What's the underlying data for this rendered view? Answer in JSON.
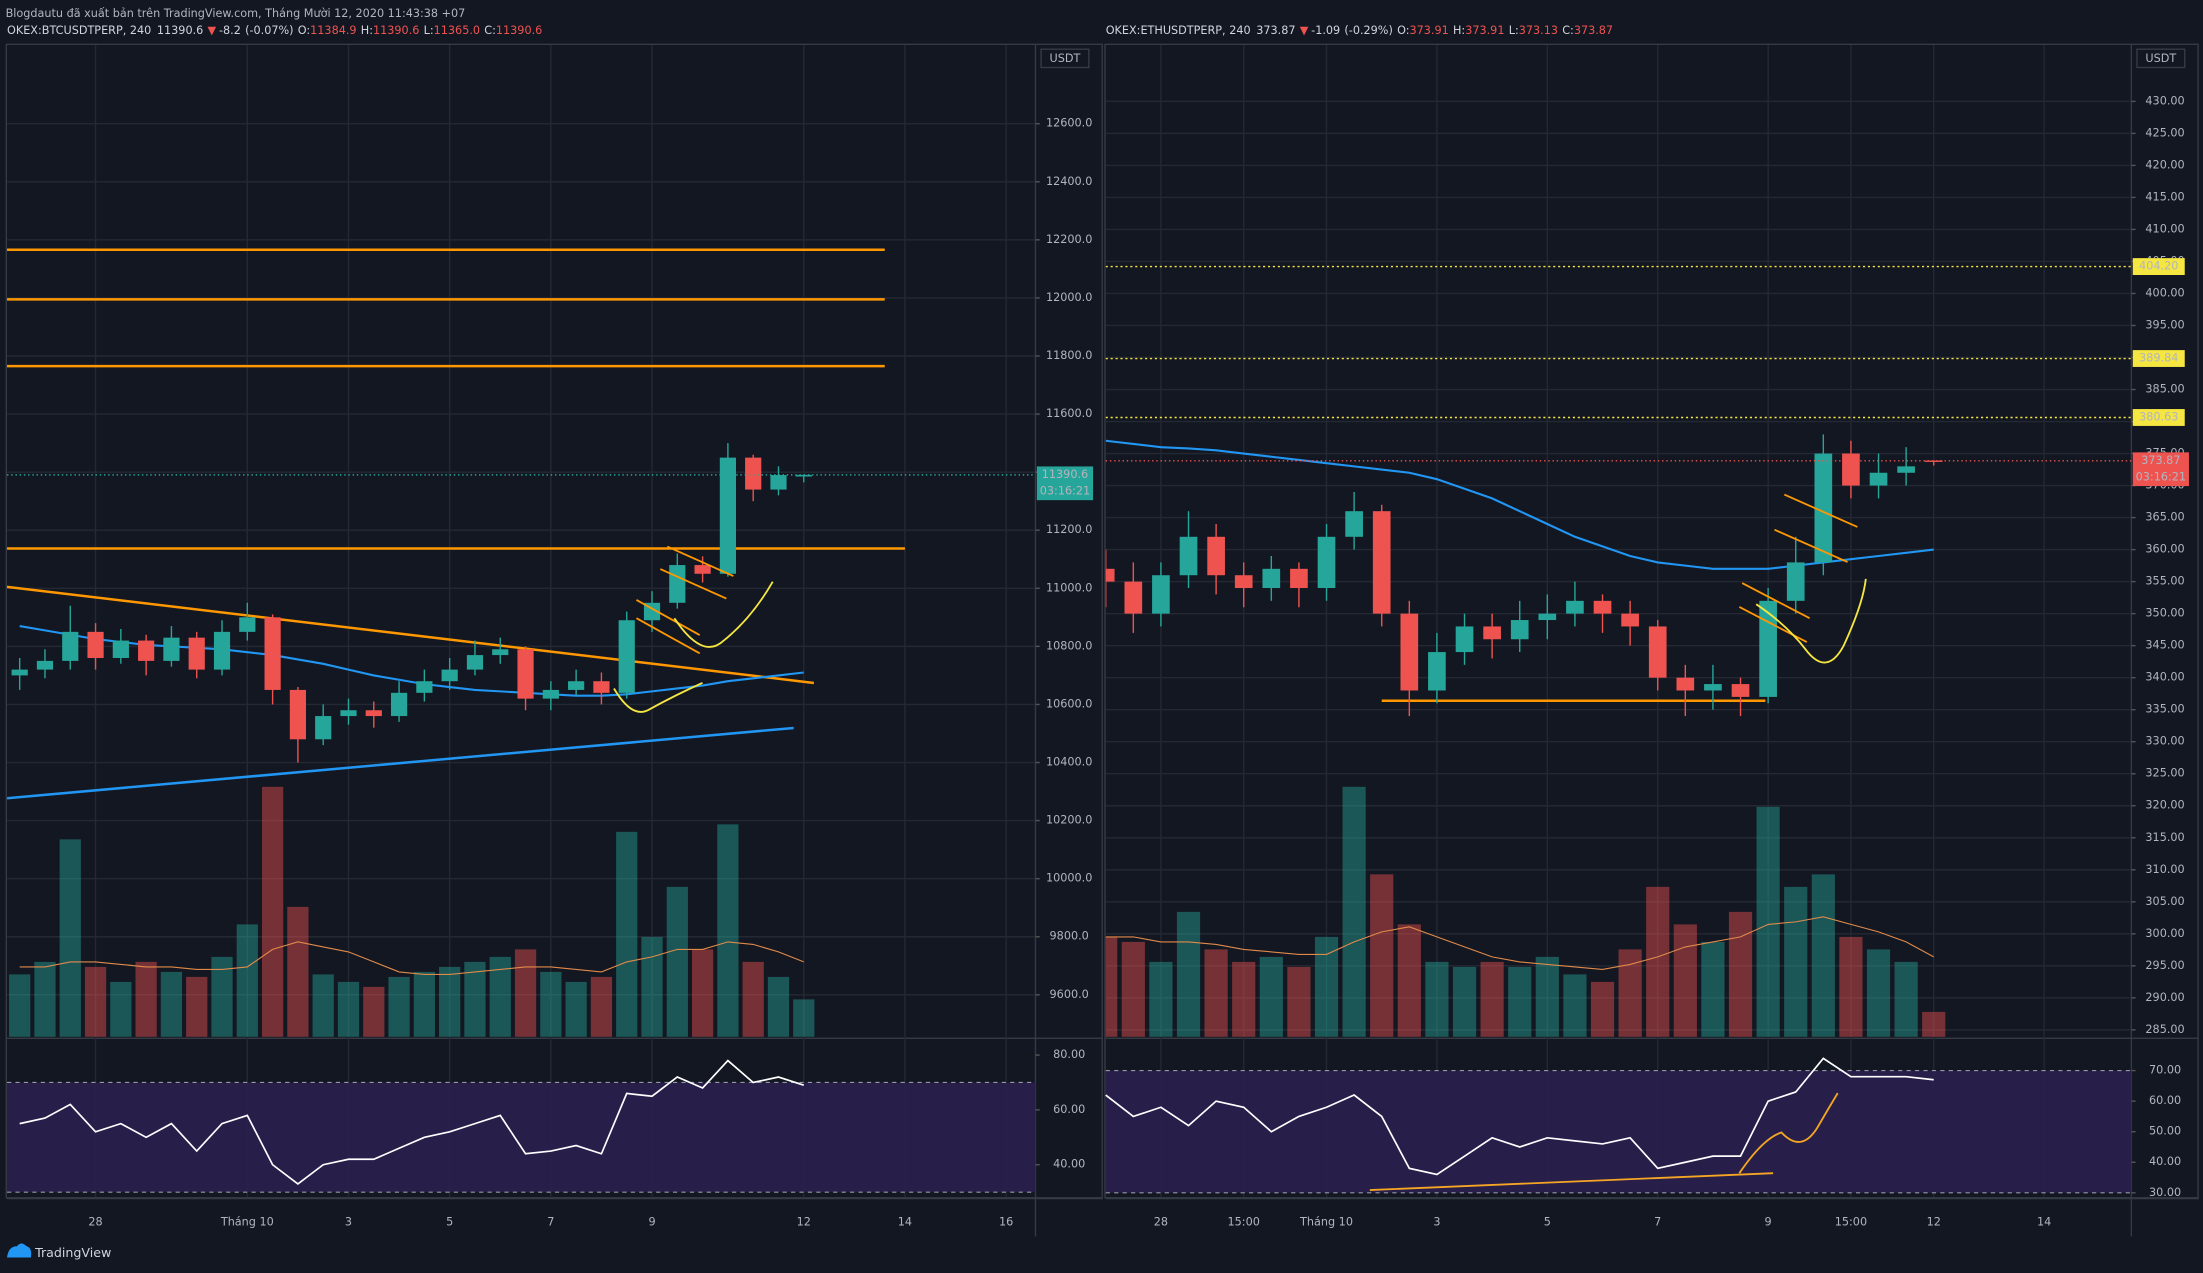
{
  "header": {
    "title": "Blogdautu đã xuất bản trên TradingView.com, Tháng Mười 12, 2020 11:43:38 +07"
  },
  "brand": "TradingView",
  "chart_data": [
    {
      "type": "candlestick",
      "symbol": "OKEX:BTCUSDTPERP, 240",
      "last": 11390.6,
      "change_arrow": "▼",
      "change": -8.2,
      "change_label": "(-0.07%)",
      "quote": [
        {
          "label": "O:",
          "value": 11384.9
        },
        {
          "label": "H:",
          "value": 11390.6
        },
        {
          "label": "L:",
          "value": {
            "value": 11365,
            "label": "11365.0"
          }
        },
        {
          "label": "C:",
          "value": 11390.6
        }
      ],
      "currency": "USDT",
      "countdown": "03:16:21",
      "up_color": "#26a69a",
      "down_color": "#ef5350",
      "tag_color": "#26a69a",
      "xlim": [
        -1.75,
        18.58
      ],
      "xticks": [
        {
          "value": 0,
          "label": "28"
        },
        {
          "value": 3,
          "label": "Tháng 10"
        },
        {
          "value": 5,
          "label": "3"
        },
        {
          "value": 7,
          "label": "5"
        },
        {
          "value": 9,
          "label": "7"
        },
        {
          "value": 11,
          "label": "9"
        },
        {
          "value": 14,
          "label": "12"
        },
        {
          "value": 16,
          "label": "14"
        },
        {
          "value": 18,
          "label": "16"
        }
      ],
      "ylim": [
        9455,
        12871
      ],
      "yticks": [
        {
          "value": 9600,
          "label": "9600.0"
        },
        {
          "value": 9800,
          "label": "9800.0"
        },
        {
          "value": 10000,
          "label": "10000.0"
        },
        {
          "value": 10200,
          "label": "10200.0"
        },
        {
          "value": 10400,
          "label": "10400.0"
        },
        {
          "value": 10600,
          "label": "10600.0"
        },
        {
          "value": 10800,
          "label": "10800.0"
        },
        {
          "value": 11000,
          "label": "11000.0"
        },
        {
          "value": 11200,
          "label": "11200.0"
        },
        {
          "value": 11400,
          "label": "11400.0"
        },
        {
          "value": 11600,
          "label": "11600.0"
        },
        {
          "value": 11800,
          "label": "11800.0"
        },
        {
          "value": 12000,
          "label": "12000.0"
        },
        {
          "value": 12200,
          "label": "12200.0"
        },
        {
          "value": 12400,
          "label": "12400.0"
        },
        {
          "value": 12600,
          "label": "12600.0"
        }
      ],
      "x": [
        -1.5,
        -1,
        -0.5,
        0,
        0.5,
        1,
        1.5,
        2,
        2.5,
        3,
        3.5,
        4,
        4.5,
        5,
        5.5,
        6,
        6.5,
        7,
        7.5,
        8,
        8.5,
        9,
        9.5,
        10,
        10.5,
        11,
        11.5,
        12,
        12.5,
        13,
        13.5,
        14
      ],
      "open": [
        10700,
        10720,
        10750,
        10850,
        10760,
        10820,
        10750,
        10830,
        10720,
        10850,
        10900,
        10650,
        10480,
        10560,
        10580,
        10560,
        10640,
        10680,
        10720,
        10770,
        10790,
        10620,
        10650,
        10680,
        10640,
        10890,
        10950,
        11080,
        11050,
        11450,
        11340,
        11384.9
      ],
      "high": [
        10760,
        10790,
        10940,
        10880,
        10860,
        10840,
        10870,
        10850,
        10890,
        10950,
        10910,
        10660,
        10600,
        10620,
        10610,
        10680,
        10720,
        10760,
        10820,
        10830,
        10800,
        10680,
        10720,
        10710,
        10920,
        10990,
        11120,
        11110,
        11500,
        11460,
        11420,
        11390.6
      ],
      "low": [
        10650,
        10690,
        10720,
        10720,
        10740,
        10700,
        10730,
        10690,
        10700,
        10820,
        10600,
        10400,
        10460,
        10530,
        10520,
        10540,
        10610,
        10650,
        10700,
        10740,
        10580,
        10580,
        10630,
        10600,
        10620,
        10850,
        10930,
        11020,
        11040,
        11300,
        11320,
        11365
      ],
      "close": [
        10720,
        10750,
        10850,
        10760,
        10820,
        10750,
        10830,
        10720,
        10850,
        10900,
        10650,
        10480,
        10560,
        10580,
        10560,
        10640,
        10680,
        10720,
        10770,
        10790,
        10620,
        10650,
        10680,
        10640,
        10890,
        10950,
        11080,
        11050,
        11450,
        11340,
        11390,
        11390.6
      ],
      "ma": {
        "color": "#2196f3",
        "values": [
          10870,
          10855,
          10840,
          10825,
          10815,
          10805,
          10800,
          10795,
          10790,
          10780,
          10770,
          10755,
          10740,
          10720,
          10700,
          10685,
          10670,
          10660,
          10650,
          10645,
          10640,
          10635,
          10630,
          10630,
          10635,
          10645,
          10655,
          10665,
          10680,
          10690,
          10700,
          10710
        ]
      },
      "volume_lim": [
        0,
        100
      ],
      "volume": [
        25,
        30,
        79,
        28,
        22,
        30,
        26,
        24,
        32,
        45,
        100,
        52,
        25,
        22,
        20,
        24,
        26,
        28,
        30,
        32,
        35,
        26,
        22,
        24,
        82,
        40,
        60,
        35,
        85,
        30,
        24,
        15
      ],
      "volume_ma": {
        "color": "#e08a4a",
        "values": [
          28,
          28,
          30,
          30,
          29,
          28,
          28,
          27,
          27,
          28,
          35,
          38,
          36,
          34,
          30,
          26,
          25,
          25,
          26,
          27,
          28,
          28,
          27,
          26,
          30,
          32,
          35,
          35,
          38,
          37,
          34,
          30
        ]
      },
      "levels": [
        {
          "value": 12166,
          "to": 15.6,
          "color": "#ff9800"
        },
        {
          "value": 11995,
          "to": 15.6,
          "color": "#ff9800"
        },
        {
          "value": 11765,
          "to": 15.6,
          "color": "#ff9800"
        },
        {
          "value": 11137,
          "to": 16,
          "color": "#ff9800"
        }
      ],
      "trendlines": [
        {
          "color": "#ff9800",
          "points": [
            [
              -1.75,
              11005
            ],
            [
              14.2,
              10674
            ]
          ]
        },
        {
          "color": "#2196f3",
          "points": [
            [
              -1.75,
              10277
            ],
            [
              13.8,
              10519
            ]
          ]
        }
      ],
      "rsi": {
        "ylim": [
          28.2,
          85.6
        ],
        "yticks": [
          {
            "value": 80,
            "label": "80.00"
          },
          {
            "value": 60,
            "label": "60.00"
          },
          {
            "value": 40,
            "label": "40.00"
          }
        ],
        "bands": [
          70,
          30
        ],
        "values": [
          55,
          57,
          62,
          52,
          55,
          50,
          55,
          45,
          55,
          58,
          40,
          33,
          40,
          42,
          42,
          46,
          50,
          52,
          55,
          58,
          44,
          45,
          47,
          44,
          66,
          65,
          72,
          68,
          78,
          70,
          72,
          69
        ]
      }
    },
    {
      "type": "candlestick",
      "symbol": "OKEX:ETHUSDTPERP, 240",
      "last": 373.87,
      "change_arrow": "▼",
      "change": -1.09,
      "change_label": "(-0.29%)",
      "quote": [
        {
          "label": "O:",
          "value": 373.91
        },
        {
          "label": "H:",
          "value": 373.91
        },
        {
          "label": "L:",
          "value": 373.13
        },
        {
          "label": "C:",
          "value": 373.87
        }
      ],
      "currency": "USDT",
      "countdown": "03:16:21",
      "up_color": "#26a69a",
      "down_color": "#ef5350",
      "tag_color": "#ef5350",
      "xlim": [
        -1.0,
        17.58
      ],
      "xticks": [
        {
          "value": 0,
          "label": "28"
        },
        {
          "value": 1.5,
          "label": "15:00"
        },
        {
          "value": 3,
          "label": "Tháng 10"
        },
        {
          "value": 5,
          "label": "3"
        },
        {
          "value": 7,
          "label": "5"
        },
        {
          "value": 9,
          "label": "7"
        },
        {
          "value": 11,
          "label": "9"
        },
        {
          "value": 12.5,
          "label": "15:00"
        },
        {
          "value": 14,
          "label": "12"
        },
        {
          "value": 16,
          "label": "14"
        }
      ],
      "ylim": [
        283.9,
        438.8
      ],
      "yticks": [
        {
          "value": 285,
          "label": "285.00"
        },
        {
          "value": 290,
          "label": "290.00"
        },
        {
          "value": 295,
          "label": "295.00"
        },
        {
          "value": 300,
          "label": "300.00"
        },
        {
          "value": 305,
          "label": "305.00"
        },
        {
          "value": 310,
          "label": "310.00"
        },
        {
          "value": 315,
          "label": "315.00"
        },
        {
          "value": 320,
          "label": "320.00"
        },
        {
          "value": 325,
          "label": "325.00"
        },
        {
          "value": 330,
          "label": "330.00"
        },
        {
          "value": 335,
          "label": "335.00"
        },
        {
          "value": 340,
          "label": "340.00"
        },
        {
          "value": 345,
          "label": "345.00"
        },
        {
          "value": 350,
          "label": "350.00"
        },
        {
          "value": 355,
          "label": "355.00"
        },
        {
          "value": 360,
          "label": "360.00"
        },
        {
          "value": 365,
          "label": "365.00"
        },
        {
          "value": 370,
          "label": "370.00"
        },
        {
          "value": 375,
          "label": "375.00"
        },
        {
          "value": 380,
          "label": "380.00"
        },
        {
          "value": 385,
          "label": "385.00"
        },
        {
          "value": 390,
          "label": "390.00"
        },
        {
          "value": 395,
          "label": "395.00"
        },
        {
          "value": 400,
          "label": "400.00"
        },
        {
          "value": 405,
          "label": "405.00"
        },
        {
          "value": 410,
          "label": "410.00"
        },
        {
          "value": 415,
          "label": "415.00"
        },
        {
          "value": 420,
          "label": "420.00"
        },
        {
          "value": 425,
          "label": "425.00"
        },
        {
          "value": 430,
          "label": "430.00"
        }
      ],
      "x": [
        -1,
        -0.5,
        0,
        0.5,
        1,
        1.5,
        2,
        2.5,
        3,
        3.5,
        4,
        4.5,
        5,
        5.5,
        6,
        6.5,
        7,
        7.5,
        8,
        8.5,
        9,
        9.5,
        10,
        10.5,
        11,
        11.5,
        12,
        12.5,
        13,
        13.5,
        14
      ],
      "open": [
        357,
        355,
        350,
        356,
        362,
        356,
        354,
        357,
        354,
        362,
        366,
        350,
        338,
        344,
        348,
        346,
        349,
        350,
        352,
        350,
        348,
        340,
        338,
        339,
        337,
        352,
        358,
        375,
        370,
        372,
        373.91
      ],
      "high": [
        360,
        358,
        358,
        366,
        364,
        358,
        359,
        358,
        364,
        369,
        367,
        352,
        347,
        350,
        350,
        352,
        353,
        355,
        353,
        352,
        349,
        342,
        342,
        340,
        354,
        362,
        378,
        377,
        375,
        376,
        373.91
      ],
      "low": [
        351,
        347,
        348,
        354,
        353,
        351,
        352,
        351,
        352,
        360,
        348,
        334,
        336,
        342,
        343,
        344,
        346,
        348,
        347,
        345,
        338,
        334,
        335,
        334,
        336,
        350,
        356,
        368,
        368,
        370,
        373.13
      ],
      "close": [
        355,
        350,
        356,
        362,
        356,
        354,
        357,
        354,
        362,
        366,
        350,
        338,
        344,
        348,
        346,
        349,
        350,
        352,
        350,
        348,
        340,
        338,
        339,
        337,
        352,
        358,
        375,
        370,
        372,
        373,
        373.87
      ],
      "ma": {
        "color": "#2196f3",
        "values": [
          377,
          376.5,
          376,
          375.8,
          375.5,
          375,
          374.5,
          374,
          373.5,
          373,
          372.5,
          372,
          371,
          369.5,
          368,
          366,
          364,
          362,
          360.5,
          359,
          358,
          357.5,
          357,
          357,
          357,
          357.5,
          358,
          358.5,
          359,
          359.5,
          360
        ]
      },
      "volume_lim": [
        0,
        100
      ],
      "volume": [
        40,
        38,
        30,
        50,
        35,
        30,
        32,
        28,
        40,
        100,
        65,
        45,
        30,
        28,
        30,
        28,
        32,
        25,
        22,
        35,
        60,
        45,
        38,
        50,
        92,
        60,
        65,
        40,
        35,
        30,
        10
      ],
      "volume_ma": {
        "color": "#e08a4a",
        "values": [
          40,
          40,
          38,
          38,
          37,
          35,
          34,
          33,
          33,
          38,
          42,
          44,
          40,
          36,
          32,
          30,
          29,
          28,
          27,
          29,
          32,
          36,
          38,
          40,
          45,
          46,
          48,
          45,
          42,
          38,
          32
        ]
      },
      "levels": [
        {
          "value": 404.2,
          "label": "404.20",
          "color": "#f5e642",
          "dotted": true
        },
        {
          "value": 389.84,
          "label": "389.84",
          "color": "#f5e642",
          "dotted": true
        },
        {
          "value": 380.63,
          "label": "380.63",
          "color": "#f5e642",
          "dotted": true
        }
      ],
      "trendlines": [
        {
          "color": "#ff9800",
          "points": [
            [
              4,
              336.4
            ],
            [
              10.95,
              336.4
            ]
          ]
        }
      ],
      "rsi": {
        "ylim": [
          28.6,
          80.1
        ],
        "yticks": [
          {
            "value": 70,
            "label": "70.00"
          },
          {
            "value": 60,
            "label": "60.00"
          },
          {
            "value": 50,
            "label": "50.00"
          },
          {
            "value": 40,
            "label": "40.00"
          },
          {
            "value": 30,
            "label": "30.00"
          }
        ],
        "bands": [
          70,
          30
        ],
        "values": [
          62,
          55,
          58,
          52,
          60,
          58,
          50,
          55,
          58,
          62,
          55,
          38,
          36,
          42,
          48,
          45,
          48,
          47,
          46,
          48,
          38,
          40,
          42,
          42,
          60,
          63,
          74,
          68,
          68,
          68,
          67
        ]
      }
    }
  ]
}
